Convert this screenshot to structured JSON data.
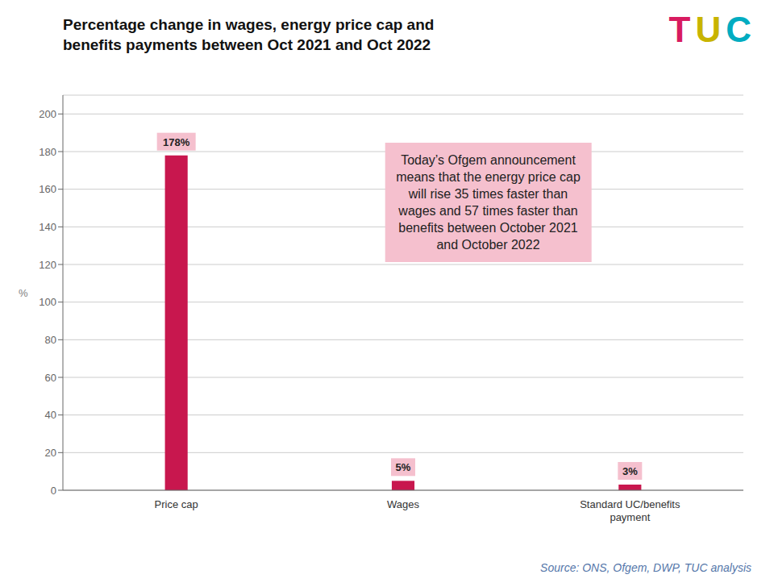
{
  "chart_data": {
    "type": "bar",
    "title": "Percentage change in wages, energy price cap and\nbenefits payments between Oct 2021 and Oct 2022",
    "categories": [
      "Price cap",
      "Wages",
      "Standard UC/benefits\npayment"
    ],
    "values": [
      178,
      5,
      3
    ],
    "value_labels": [
      "178%",
      "5%",
      "3%"
    ],
    "data_labels": true,
    "color": "#C8174E",
    "label_background": "#F5C0CE",
    "ylabel": "%",
    "ylim": [
      0,
      210
    ],
    "yticks": [
      0,
      20,
      40,
      60,
      80,
      100,
      120,
      140,
      160,
      180,
      200
    ],
    "grid": true,
    "annotations": [
      {
        "text": "Today’s Ofgem announcement\nmeans that the energy price cap\nwill rise 35 times faster than\nwages and 57 times faster than\nbenefits between October 2021\nand October 2022",
        "background": "#F5C0CE"
      },
      {
        "text": "Source: ONS, Ofgem, DWP, TUC analysis"
      }
    ],
    "logo": [
      {
        "text": "T",
        "color": "#D81B60"
      },
      {
        "text": "U",
        "color": "#C8B400"
      },
      {
        "text": "C",
        "color": "#00ACC1"
      }
    ]
  }
}
